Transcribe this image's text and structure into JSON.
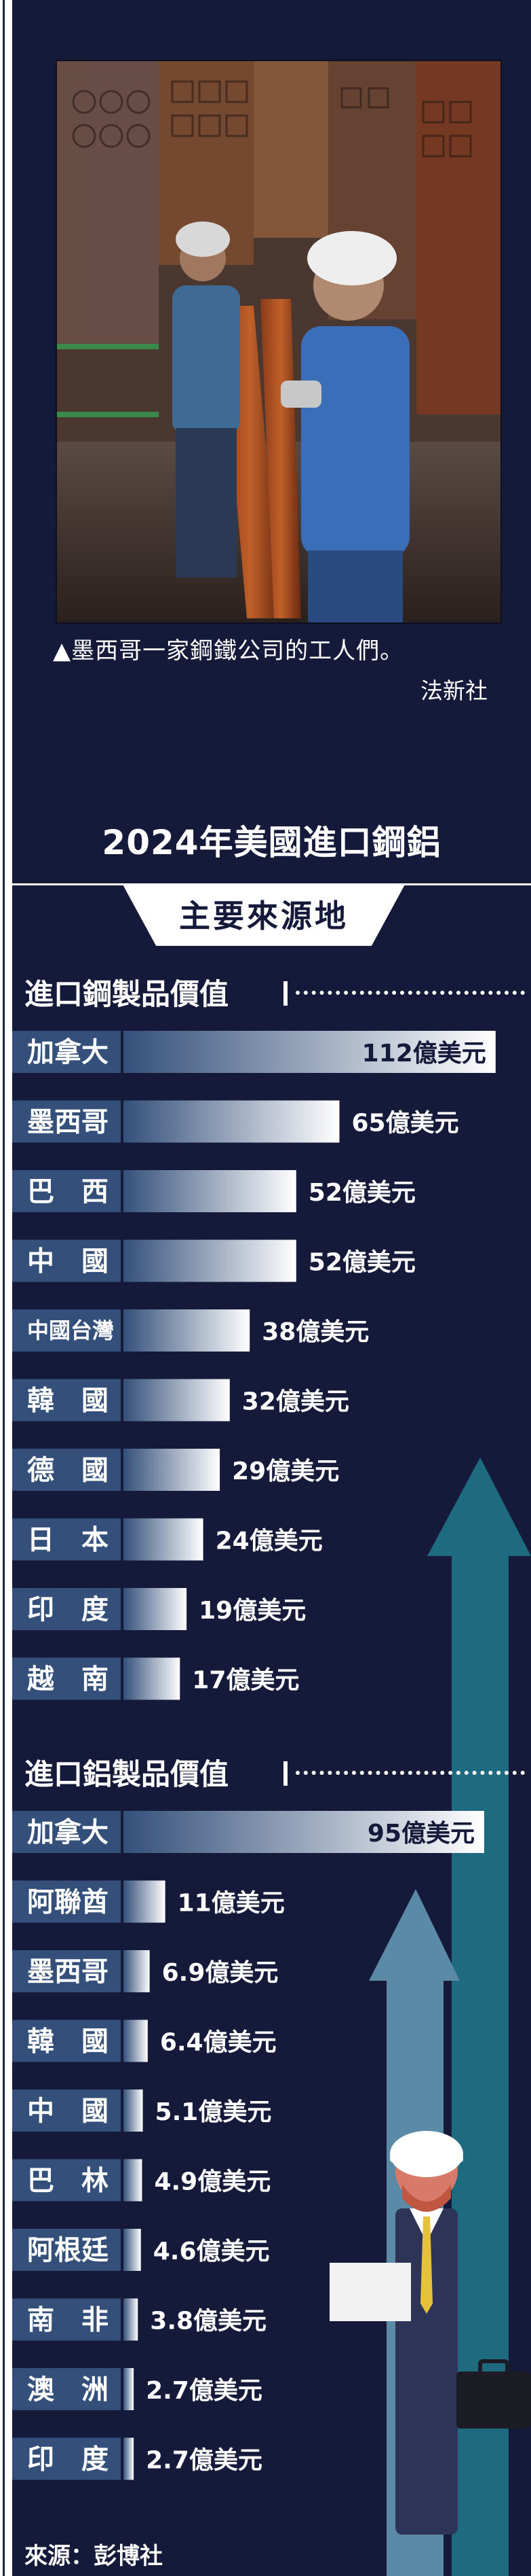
{
  "photo": {
    "caption": "▲墨西哥一家鋼鐵公司的工人們。",
    "credit": "法新社"
  },
  "title": "2024年美國進口鋼鋁",
  "subtitle": "主要來源地",
  "source": "來源：彭博社",
  "colors": {
    "background": "#161a3a",
    "label_box": "#34507a",
    "bar_dark": "#34507a",
    "bar_light": "#ffffff",
    "arrow_teal": "#1e6b80",
    "arrow_light": "#5b8aa6",
    "text": "#ffffff"
  },
  "chart_data": [
    {
      "type": "bar",
      "title": "進口鋼製品價值",
      "unit": "億美元",
      "categories": [
        "加拿大",
        "墨西哥",
        "巴　西",
        "中　國",
        "中國台灣",
        "韓　國",
        "德　國",
        "日　本",
        "印　度",
        "越　南"
      ],
      "values": [
        112,
        65,
        52,
        52,
        38,
        32,
        29,
        24,
        19,
        17
      ],
      "value_labels": [
        "112億美元",
        "65億美元",
        "52億美元",
        "52億美元",
        "38億美元",
        "32億美元",
        "29億美元",
        "24億美元",
        "19億美元",
        "17億美元"
      ],
      "orientation": "horizontal"
    },
    {
      "type": "bar",
      "title": "進口鋁製品價值",
      "unit": "億美元",
      "categories": [
        "加拿大",
        "阿聯酋",
        "墨西哥",
        "韓　國",
        "中　國",
        "巴　林",
        "阿根廷",
        "南　非",
        "澳　洲",
        "印　度"
      ],
      "values": [
        95,
        11,
        6.9,
        6.4,
        5.1,
        4.9,
        4.6,
        3.8,
        2.7,
        2.7
      ],
      "value_labels": [
        "95億美元",
        "11億美元",
        "6.9億美元",
        "6.4億美元",
        "5.1億美元",
        "4.9億美元",
        "4.6億美元",
        "3.8億美元",
        "2.7億美元",
        "2.7億美元"
      ],
      "orientation": "horizontal"
    }
  ]
}
